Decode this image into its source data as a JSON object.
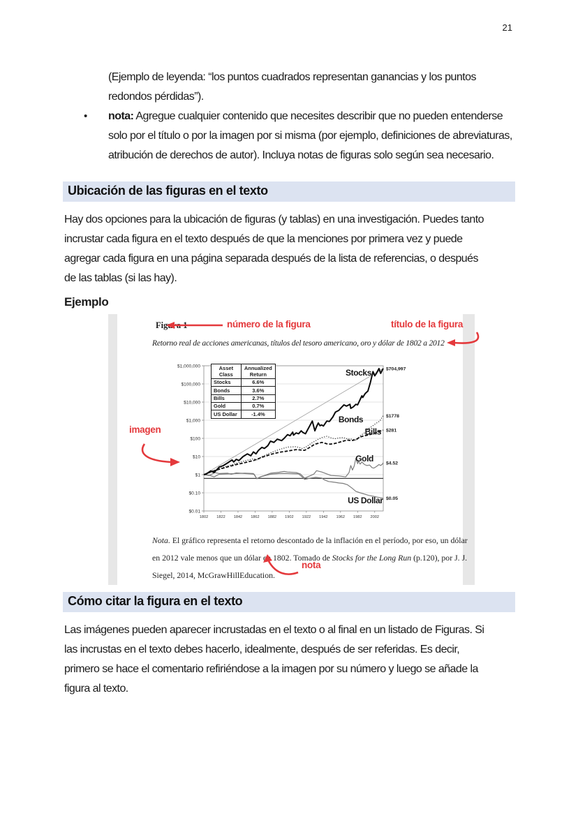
{
  "page": {
    "number": "21"
  },
  "colors": {
    "accent_red": "#e4393c",
    "heading_bg": "#dce3f1",
    "text": "#1b1b1b",
    "figure_strip": "#e7e7e7",
    "chart_grid": "#c8c8c8"
  },
  "intro_list": {
    "continuation": "(Ejemplo de leyenda: “los puntos cuadrados representan ganancias y los puntos redondos pérdidas”).",
    "bullet": {
      "label": "nota:",
      "text": " Agregue cualquier contenido que necesites describir que no pueden entenderse solo por el título o por la imagen por si misma (por ejemplo, definiciones de abreviaturas, atribución de derechos de autor). Incluya notas de figuras solo según sea necesario."
    }
  },
  "section1": {
    "heading": "Ubicación de las figuras en el texto",
    "paragraph": "Hay dos opciones para la ubicación de figuras (y tablas) en una investigación. Puedes tanto incrustar cada figura en el texto después de que la menciones por primera vez y puede agregar cada figura en una página separada después de la lista de referencias, o después de las tablas (si las hay).",
    "example_label": "Ejemplo"
  },
  "figure": {
    "label": "Figura 1",
    "title": "Retorno real de acciones americanas, títulos del tesoro americano, oro y dólar de 1802 a 2012",
    "annotations": {
      "number": "número de la figura",
      "title": "título de la figura",
      "image": "imagen",
      "note": "nota"
    },
    "note": {
      "lead": "Nota.",
      "part1": " El gráfico representa el retorno descontado de la inflación en el período, por eso, un dólar en 2012 vale menos que un dólar en 1802. Tomado de ",
      "source": "Stocks for the Long Run",
      "part2": " (p.120), por J. J. Siegel, 2014, McGrawHillEducation."
    }
  },
  "chart_data": {
    "type": "line",
    "title": "Retorno real de acciones americanas, títulos del tesoro americano, oro y dólar de 1802 a 2012",
    "y_scale": "log",
    "ylim": [
      0.01,
      1000000
    ],
    "xlim": [
      1802,
      2012
    ],
    "grid": "horizontal-only",
    "y_ticks": [
      "$1,000,000",
      "$100,000",
      "$10,000",
      "$1,000",
      "$100",
      "$10",
      "$1",
      "$0.10",
      "$0.01"
    ],
    "y_tick_values": [
      1000000,
      100000,
      10000,
      1000,
      100,
      10,
      1,
      0.1,
      0.01
    ],
    "x_ticks": [
      1802,
      1822,
      1842,
      1862,
      1882,
      1902,
      1922,
      1942,
      1962,
      1982,
      2002
    ],
    "reference_line_y": 0.62,
    "legend_table": {
      "headers": [
        [
          "Asset",
          "Class"
        ],
        [
          "Annualized",
          "Return"
        ]
      ],
      "rows": [
        [
          "Stocks",
          "6.6%"
        ],
        [
          "Bonds",
          "3.6%"
        ],
        [
          "Bills",
          "2.7%"
        ],
        [
          "Gold",
          "0.7%"
        ],
        [
          "US Dollar",
          "-1.4%"
        ]
      ]
    },
    "series": [
      {
        "name": "Stocks trend",
        "style": "thin-gray",
        "points": [
          [
            1802,
            1
          ],
          [
            2012,
            704997
          ]
        ]
      },
      {
        "name": "Gold",
        "style": "solid-gray",
        "end_label": "$4.52",
        "annualized_return": "0.7%",
        "label_at": [
          1990,
          5.5
        ],
        "points": [
          [
            1802,
            1
          ],
          [
            1808,
            0.9
          ],
          [
            1815,
            1.3
          ],
          [
            1820,
            1.15
          ],
          [
            1830,
            1.2
          ],
          [
            1834,
            1.05
          ],
          [
            1840,
            1.25
          ],
          [
            1850,
            1.15
          ],
          [
            1857,
            1.1
          ],
          [
            1861,
            1.05
          ],
          [
            1864,
            0.6
          ],
          [
            1868,
            0.75
          ],
          [
            1873,
            0.9
          ],
          [
            1880,
            1.2
          ],
          [
            1890,
            1.35
          ],
          [
            1896,
            1.5
          ],
          [
            1900,
            1.4
          ],
          [
            1910,
            1.3
          ],
          [
            1915,
            1.1
          ],
          [
            1920,
            0.65
          ],
          [
            1926,
            0.85
          ],
          [
            1931,
            1.1
          ],
          [
            1934,
            1.65
          ],
          [
            1940,
            1.4
          ],
          [
            1946,
            1.1
          ],
          [
            1951,
            0.9
          ],
          [
            1960,
            0.85
          ],
          [
            1968,
            0.75
          ],
          [
            1972,
            1.3
          ],
          [
            1974,
            3.2
          ],
          [
            1976,
            1.8
          ],
          [
            1978,
            3.0
          ],
          [
            1980,
            8.0
          ],
          [
            1982,
            4.0
          ],
          [
            1983,
            5.5
          ],
          [
            1985,
            3.8
          ],
          [
            1987,
            5.0
          ],
          [
            1990,
            3.6
          ],
          [
            1993,
            3.2
          ],
          [
            1996,
            3.4
          ],
          [
            1999,
            2.4
          ],
          [
            2001,
            2.3
          ],
          [
            2004,
            2.8
          ],
          [
            2007,
            3.6
          ],
          [
            2009,
            3.2
          ],
          [
            2011,
            3.8
          ],
          [
            2012,
            4.52
          ]
        ]
      },
      {
        "name": "US Dollar",
        "style": "solid-gray",
        "end_label": "$0.05",
        "annualized_return": "-1.4%",
        "label_at": [
          1991,
          0.0265
        ],
        "points": [
          [
            1802,
            1
          ],
          [
            1808,
            0.95
          ],
          [
            1814,
            0.75
          ],
          [
            1820,
            1.05
          ],
          [
            1830,
            1.1
          ],
          [
            1840,
            1.15
          ],
          [
            1850,
            1.2
          ],
          [
            1860,
            1.15
          ],
          [
            1864,
            0.6
          ],
          [
            1870,
            0.8
          ],
          [
            1880,
            1.05
          ],
          [
            1890,
            1.15
          ],
          [
            1900,
            1.15
          ],
          [
            1913,
            1.1
          ],
          [
            1917,
            0.75
          ],
          [
            1920,
            0.55
          ],
          [
            1925,
            0.62
          ],
          [
            1930,
            0.68
          ],
          [
            1933,
            0.72
          ],
          [
            1940,
            0.65
          ],
          [
            1943,
            0.52
          ],
          [
            1948,
            0.42
          ],
          [
            1955,
            0.38
          ],
          [
            1960,
            0.35
          ],
          [
            1965,
            0.33
          ],
          [
            1970,
            0.28
          ],
          [
            1975,
            0.19
          ],
          [
            1980,
            0.12
          ],
          [
            1985,
            0.1
          ],
          [
            1990,
            0.085
          ],
          [
            1995,
            0.072
          ],
          [
            2000,
            0.065
          ],
          [
            2005,
            0.058
          ],
          [
            2012,
            0.05
          ]
        ]
      },
      {
        "name": "Bonds",
        "style": "dotted-black",
        "end_label": "$1778",
        "annualized_return": "3.6%",
        "label_at": [
          1974,
          760
        ],
        "points": [
          [
            1802,
            1
          ],
          [
            1810,
            1.5
          ],
          [
            1820,
            2.1
          ],
          [
            1830,
            3
          ],
          [
            1840,
            4.2
          ],
          [
            1850,
            5.8
          ],
          [
            1860,
            7.5
          ],
          [
            1865,
            6.5
          ],
          [
            1870,
            10
          ],
          [
            1880,
            16
          ],
          [
            1890,
            24
          ],
          [
            1900,
            33
          ],
          [
            1910,
            35
          ],
          [
            1917,
            28
          ],
          [
            1921,
            32
          ],
          [
            1928,
            55
          ],
          [
            1932,
            70
          ],
          [
            1936,
            90
          ],
          [
            1940,
            110
          ],
          [
            1946,
            130
          ],
          [
            1950,
            110
          ],
          [
            1955,
            95
          ],
          [
            1960,
            105
          ],
          [
            1965,
            110
          ],
          [
            1970,
            95
          ],
          [
            1975,
            90
          ],
          [
            1981,
            80
          ],
          [
            1985,
            140
          ],
          [
            1990,
            200
          ],
          [
            1995,
            350
          ],
          [
            2000,
            500
          ],
          [
            2003,
            650
          ],
          [
            2008,
            900
          ],
          [
            2010,
            1300
          ],
          [
            2012,
            1778
          ]
        ]
      },
      {
        "name": "Bills",
        "style": "dashed-black",
        "end_label": "$281",
        "annualized_return": "2.7%",
        "label_at": [
          2000,
          160
        ],
        "points": [
          [
            1802,
            1
          ],
          [
            1810,
            1.4
          ],
          [
            1820,
            2
          ],
          [
            1830,
            2.7
          ],
          [
            1840,
            3.6
          ],
          [
            1850,
            4.6
          ],
          [
            1860,
            6
          ],
          [
            1870,
            9
          ],
          [
            1880,
            13
          ],
          [
            1890,
            17
          ],
          [
            1900,
            20
          ],
          [
            1910,
            24
          ],
          [
            1920,
            22
          ],
          [
            1926,
            32
          ],
          [
            1932,
            48
          ],
          [
            1940,
            60
          ],
          [
            1946,
            50
          ],
          [
            1950,
            48
          ],
          [
            1955,
            52
          ],
          [
            1960,
            60
          ],
          [
            1965,
            70
          ],
          [
            1970,
            80
          ],
          [
            1975,
            75
          ],
          [
            1980,
            85
          ],
          [
            1985,
            120
          ],
          [
            1990,
            140
          ],
          [
            1995,
            155
          ],
          [
            2000,
            185
          ],
          [
            2005,
            210
          ],
          [
            2009,
            255
          ],
          [
            2012,
            281
          ]
        ]
      },
      {
        "name": "Stocks",
        "style": "solid-bold-black",
        "end_label": "$704,997",
        "annualized_return": "6.6%",
        "label_at": [
          1983,
          290000
        ],
        "points": [
          [
            1802,
            1
          ],
          [
            1805,
            1.1
          ],
          [
            1810,
            1.6
          ],
          [
            1814,
            1.3
          ],
          [
            1820,
            2.6
          ],
          [
            1825,
            3.2
          ],
          [
            1830,
            4.5
          ],
          [
            1835,
            6.5
          ],
          [
            1837,
            5
          ],
          [
            1840,
            7
          ],
          [
            1843,
            6
          ],
          [
            1848,
            10
          ],
          [
            1853,
            14
          ],
          [
            1857,
            11
          ],
          [
            1860,
            18
          ],
          [
            1863,
            14
          ],
          [
            1866,
            22
          ],
          [
            1870,
            32
          ],
          [
            1873,
            28
          ],
          [
            1877,
            40
          ],
          [
            1880,
            70
          ],
          [
            1884,
            60
          ],
          [
            1888,
            90
          ],
          [
            1893,
            75
          ],
          [
            1896,
            100
          ],
          [
            1900,
            160
          ],
          [
            1903,
            140
          ],
          [
            1906,
            220
          ],
          [
            1907,
            150
          ],
          [
            1910,
            200
          ],
          [
            1913,
            180
          ],
          [
            1916,
            260
          ],
          [
            1918,
            210
          ],
          [
            1921,
            180
          ],
          [
            1925,
            400
          ],
          [
            1929,
            900
          ],
          [
            1932,
            260
          ],
          [
            1934,
            450
          ],
          [
            1936,
            700
          ],
          [
            1938,
            500
          ],
          [
            1940,
            550
          ],
          [
            1942,
            480
          ],
          [
            1946,
            900
          ],
          [
            1949,
            850
          ],
          [
            1953,
            1500
          ],
          [
            1956,
            2800
          ],
          [
            1960,
            3500
          ],
          [
            1963,
            5000
          ],
          [
            1966,
            7000
          ],
          [
            1969,
            6000
          ],
          [
            1973,
            7500
          ],
          [
            1974,
            4500
          ],
          [
            1977,
            5500
          ],
          [
            1980,
            7500
          ],
          [
            1982,
            7000
          ],
          [
            1985,
            14000
          ],
          [
            1987,
            22000
          ],
          [
            1988,
            18000
          ],
          [
            1991,
            30000
          ],
          [
            1994,
            40000
          ],
          [
            1997,
            120000
          ],
          [
            2000,
            480000
          ],
          [
            2002,
            280000
          ],
          [
            2004,
            380000
          ],
          [
            2007,
            700000
          ],
          [
            2009,
            380000
          ],
          [
            2011,
            600000
          ],
          [
            2012,
            704997
          ]
        ]
      }
    ]
  },
  "section2": {
    "heading": "Cómo citar la figura en el texto",
    "paragraph": "Las imágenes pueden aparecer incrustadas en el texto o al final en un listado de Figuras. Si las incrustas en el texto debes hacerlo, idealmente, después de ser referidas. Es decir, primero se hace el comentario refiriéndose a la imagen por su número y luego se añade la figura al texto."
  }
}
